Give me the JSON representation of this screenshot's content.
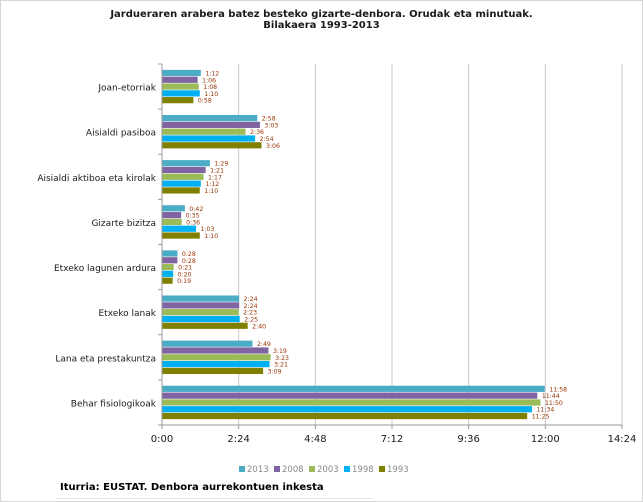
{
  "chart_data": {
    "type": "bar",
    "orientation": "horizontal",
    "title": "Jardueraren arabera batez besteko gizarte-denbora. Orudak eta minutuak.\nBilakaera 1993-2013",
    "categories": [
      "Joan-etorriak",
      "Aisialdi pasiboa",
      "Aisialdi aktiboa eta kirolak",
      "Gizarte bizitza",
      "Etxeko lagunen ardura",
      "Etxeko lanak",
      "Lana eta prestakuntza",
      "Behar fisiologikoak"
    ],
    "series": [
      {
        "name": "2013",
        "color": "#4bacc6",
        "values_min": [
          72,
          178,
          89,
          42,
          28,
          144,
          169,
          718
        ],
        "labels": [
          "1:12",
          "2:58",
          "1:29",
          "0:42",
          "0:28",
          "2:24",
          "2:49",
          "11:58"
        ]
      },
      {
        "name": "2008",
        "color": "#8064a2",
        "values_min": [
          66,
          183,
          81,
          35,
          28,
          144,
          199,
          704
        ],
        "labels": [
          "1:06",
          "3:03",
          "1:21",
          "0:35",
          "0:28",
          "2:24",
          "3:19",
          "11:44"
        ]
      },
      {
        "name": "2003",
        "color": "#9bbb59",
        "values_min": [
          68,
          156,
          77,
          36,
          21,
          143,
          203,
          710
        ],
        "labels": [
          "1:08",
          "2:36",
          "1:17",
          "0:36",
          "0:21",
          "2:23",
          "3:23",
          "11:50"
        ]
      },
      {
        "name": "1998",
        "color": "#00b0f0",
        "values_min": [
          70,
          174,
          72,
          63,
          20,
          145,
          201,
          694
        ],
        "labels": [
          "1:10",
          "2:54",
          "1:12",
          "1:03",
          "0:20",
          "2:25",
          "3:21",
          "11:34"
        ]
      },
      {
        "name": "1993",
        "color": "#808000",
        "values_min": [
          58,
          186,
          70,
          70,
          19,
          160,
          189,
          685
        ],
        "labels": [
          "0:58",
          "3:06",
          "1:10",
          "1:10",
          "0:19",
          "2:40",
          "3:09",
          "11:25"
        ]
      }
    ],
    "x_axis": {
      "min": 0,
      "max": 864,
      "tick_values_min": [
        0,
        144,
        288,
        432,
        576,
        720,
        864
      ],
      "tick_labels": [
        "0:00",
        "2:24",
        "4:48",
        "7:12",
        "9:36",
        "12:00",
        "14:24"
      ]
    },
    "grid": true,
    "legend_position": "bottom",
    "label_color": "#993300"
  },
  "source": "Iturria: EUSTAT. Denbora aurrekontuen inkesta"
}
